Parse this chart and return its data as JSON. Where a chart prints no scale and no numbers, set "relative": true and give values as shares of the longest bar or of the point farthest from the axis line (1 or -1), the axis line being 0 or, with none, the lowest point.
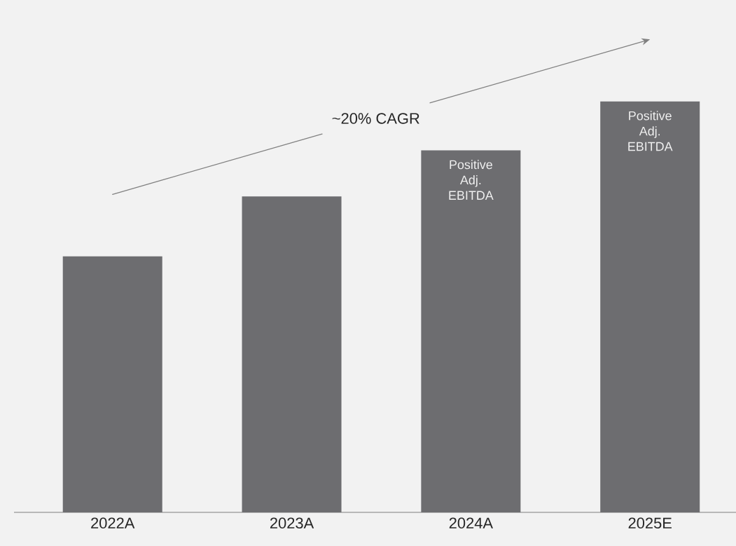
{
  "chart_data": {
    "type": "bar",
    "relative": true,
    "categories": [
      "2022A",
      "2023A",
      "2024A",
      "2025E"
    ],
    "values": [
      0.623,
      0.769,
      0.881,
      1.0
    ],
    "color": "#6d6d70",
    "annotations": [
      "~20% CAGR",
      "Positive Adj. EBITDA",
      "Positive Adj. EBITDA"
    ]
  }
}
